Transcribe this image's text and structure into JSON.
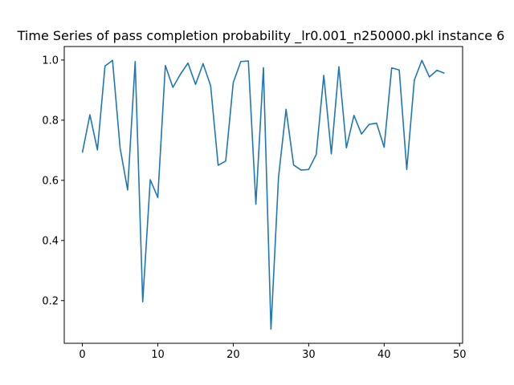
{
  "chart_data": {
    "type": "line",
    "title": "Time Series of pass completion probability _lr0.001_n250000.pkl instance 6",
    "xlabel": "",
    "ylabel": "",
    "xlim": [
      -2.4,
      50.4
    ],
    "ylim": [
      0.058,
      1.045
    ],
    "xticks": [
      0,
      10,
      20,
      30,
      40,
      50
    ],
    "yticks": [
      0.2,
      0.4,
      0.6,
      0.8,
      1.0
    ],
    "xtick_labels": [
      "0",
      "10",
      "20",
      "30",
      "40",
      "50"
    ],
    "ytick_labels": [
      "0.2",
      "0.4",
      "0.6",
      "0.8",
      "1.0"
    ],
    "grid": false,
    "series": [
      {
        "color": "#1f77b4",
        "x": [
          0,
          1,
          2,
          3,
          4,
          5,
          6,
          7,
          8,
          9,
          10,
          11,
          12,
          13,
          14,
          15,
          16,
          17,
          18,
          19,
          20,
          21,
          22,
          23,
          24,
          25,
          26,
          27,
          28,
          29,
          30,
          31,
          32,
          33,
          34,
          35,
          36,
          37,
          38,
          39,
          40,
          41,
          42,
          43,
          44,
          45,
          46,
          47,
          48
        ],
        "values": [
          0.692,
          0.818,
          0.701,
          0.98,
          0.999,
          0.708,
          0.568,
          0.995,
          0.196,
          0.602,
          0.543,
          0.982,
          0.909,
          0.953,
          0.99,
          0.919,
          0.988,
          0.915,
          0.65,
          0.664,
          0.925,
          0.995,
          0.997,
          0.521,
          0.975,
          0.105,
          0.61,
          0.836,
          0.651,
          0.634,
          0.636,
          0.686,
          0.949,
          0.688,
          0.978,
          0.708,
          0.816,
          0.754,
          0.786,
          0.79,
          0.71,
          0.974,
          0.967,
          0.636,
          0.933,
          0.999,
          0.944,
          0.966,
          0.956
        ]
      }
    ]
  }
}
